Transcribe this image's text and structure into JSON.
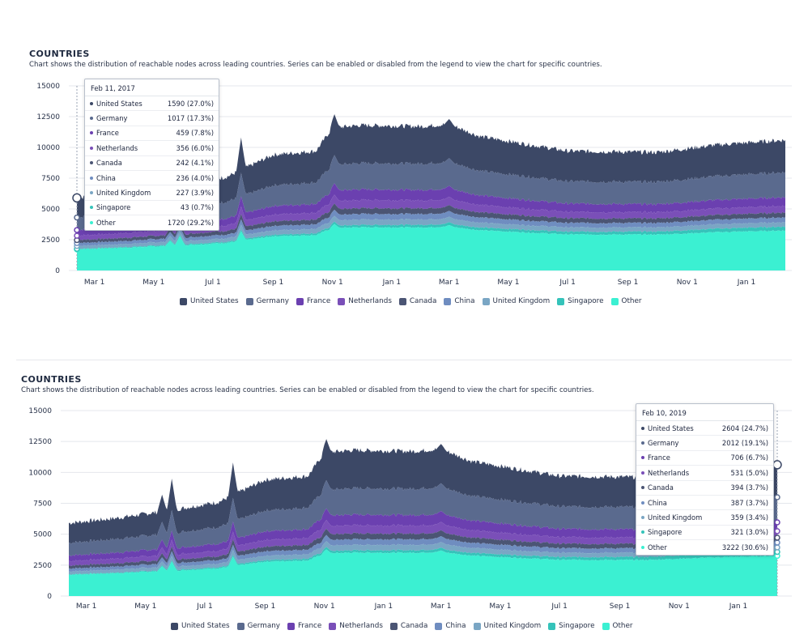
{
  "colors": {
    "United States": "#3c4866",
    "Germany": "#5a6a8e",
    "France": "#6b40b0",
    "Netherlands": "#7a4fb8",
    "Canada": "#4b5574",
    "China": "#6f8dc0",
    "United Kingdom": "#7aa6c4",
    "Singapore": "#35c3ba",
    "Other": "#3bf0d2"
  },
  "panels": [
    {
      "title": "COUNTRIES",
      "subtitle": "Chart shows the distribution of reachable nodes across leading countries. Series can be enabled or disabled from the legend to view the chart for specific countries.",
      "tooltip": {
        "date": "Feb 11, 2017",
        "rows": [
          {
            "name": "United States",
            "value": "1590 (27.0%)"
          },
          {
            "name": "Germany",
            "value": "1017 (17.3%)"
          },
          {
            "name": "France",
            "value": "459 (7.8%)"
          },
          {
            "name": "Netherlands",
            "value": "356 (6.0%)"
          },
          {
            "name": "Canada",
            "value": "242 (4.1%)"
          },
          {
            "name": "China",
            "value": "236 (4.0%)"
          },
          {
            "name": "United Kingdom",
            "value": "227 (3.9%)"
          },
          {
            "name": "Singapore",
            "value": "43 (0.7%)"
          },
          {
            "name": "Other",
            "value": "1720 (29.2%)"
          }
        ]
      },
      "legend": [
        "United States",
        "Germany",
        "France",
        "Netherlands",
        "Canada",
        "China",
        "United Kingdom",
        "Singapore",
        "Other"
      ]
    },
    {
      "title": "COUNTRIES",
      "subtitle": "Chart shows the distribution of reachable nodes across leading countries. Series can be enabled or disabled from the legend to view the chart for specific countries.",
      "tooltip": {
        "date": "Feb 10, 2019",
        "rows": [
          {
            "name": "United States",
            "value": "2604 (24.7%)"
          },
          {
            "name": "Germany",
            "value": "2012 (19.1%)"
          },
          {
            "name": "France",
            "value": "706 (6.7%)"
          },
          {
            "name": "Netherlands",
            "value": "531 (5.0%)"
          },
          {
            "name": "Canada",
            "value": "394 (3.7%)"
          },
          {
            "name": "China",
            "value": "387 (3.7%)"
          },
          {
            "name": "United Kingdom",
            "value": "359 (3.4%)"
          },
          {
            "name": "Singapore",
            "value": "321 (3.0%)"
          },
          {
            "name": "Other",
            "value": "3222 (30.6%)"
          }
        ]
      },
      "legend": [
        "United States",
        "Germany",
        "France",
        "Netherlands",
        "Canada",
        "China",
        "United Kingdom",
        "Singapore",
        "Other"
      ]
    }
  ],
  "chart_data": [
    {
      "type": "area",
      "stacked": true,
      "title": "COUNTRIES",
      "x_ticks": [
        "Mar 1",
        "May 1",
        "Jul 1",
        "Sep 1",
        "Nov 1",
        "Jan 1",
        "Mar 1",
        "May 1",
        "Jul 1",
        "Sep 1",
        "Nov 1",
        "Jan 1"
      ],
      "y_ticks": [
        0,
        2500,
        5000,
        7500,
        10000,
        12500,
        15000
      ],
      "ylim": [
        0,
        15000
      ],
      "x_range": [
        "2017-02-11",
        "2019-02-10"
      ],
      "grid": true,
      "legend_position": "bottom",
      "series_order": [
        "Other",
        "Singapore",
        "United Kingdom",
        "China",
        "Canada",
        "Netherlands",
        "France",
        "Germany",
        "United States"
      ],
      "totals_keyframes": [
        {
          "date": "2017-02-11",
          "total": 5900
        },
        {
          "date": "2017-04-01",
          "total": 6300
        },
        {
          "date": "2017-06-01",
          "total": 7000
        },
        {
          "date": "2017-07-15",
          "total": 7600
        },
        {
          "date": "2017-09-01",
          "total": 9400
        },
        {
          "date": "2017-10-15",
          "total": 9700
        },
        {
          "date": "2017-11-01",
          "total": 11600
        },
        {
          "date": "2017-12-01",
          "total": 11800
        },
        {
          "date": "2018-02-01",
          "total": 11700
        },
        {
          "date": "2018-03-01",
          "total": 11900
        },
        {
          "date": "2018-04-01",
          "total": 10900
        },
        {
          "date": "2018-07-01",
          "total": 9700
        },
        {
          "date": "2018-10-01",
          "total": 9600
        },
        {
          "date": "2018-12-01",
          "total": 10200
        },
        {
          "date": "2019-02-10",
          "total": 10600
        }
      ],
      "shares_start": {
        "United States": 27.0,
        "Germany": 17.3,
        "France": 7.8,
        "Netherlands": 6.0,
        "Canada": 4.1,
        "China": 4.0,
        "United Kingdom": 3.9,
        "Singapore": 0.7,
        "Other": 29.2
      },
      "shares_end": {
        "United States": 24.7,
        "Germany": 19.1,
        "France": 6.7,
        "Netherlands": 5.0,
        "Canada": 3.7,
        "China": 3.7,
        "United Kingdom": 3.4,
        "Singapore": 3.0,
        "Other": 30.6
      },
      "spikes": [
        {
          "date": "2017-05-18",
          "total": 8200
        },
        {
          "date": "2017-05-28",
          "total": 9500
        },
        {
          "date": "2017-07-30",
          "total": 10800
        },
        {
          "date": "2017-11-03",
          "total": 12700
        },
        {
          "date": "2018-03-01",
          "total": 12300
        }
      ],
      "start_values": {
        "United States": 1590,
        "Germany": 1017,
        "France": 459,
        "Netherlands": 356,
        "Canada": 242,
        "China": 236,
        "United Kingdom": 227,
        "Singapore": 43,
        "Other": 1720
      },
      "end_values": {
        "United States": 2604,
        "Germany": 2012,
        "France": 706,
        "Netherlands": 531,
        "Canada": 394,
        "China": 387,
        "United Kingdom": 359,
        "Singapore": 321,
        "Other": 3222
      }
    }
  ]
}
